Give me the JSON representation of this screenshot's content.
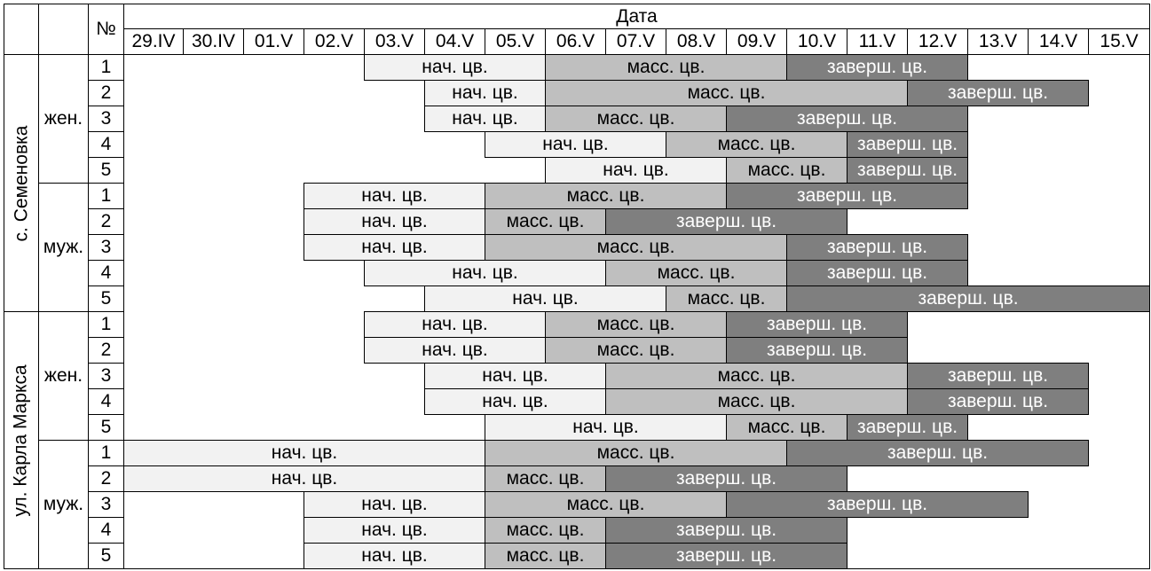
{
  "header": {
    "date_label": "Дата",
    "num_label": "№",
    "dates": [
      "29.IV",
      "30.IV",
      "01.V",
      "02.V",
      "03.V",
      "04.V",
      "05.V",
      "06.V",
      "07.V",
      "08.V",
      "09.V",
      "10.V",
      "11.V",
      "12.V",
      "13.V",
      "14.V",
      "15.V"
    ]
  },
  "colors": {
    "nach": "#f2f2f2",
    "mass": "#bfbfbf",
    "zav": "#7f7f7f"
  },
  "phase_labels": {
    "nach": "нач. цв.",
    "mass": "масс. цв.",
    "zav": "заверш. цв."
  },
  "sites": [
    {
      "name": "с. Семеновка",
      "groups": [
        {
          "sex": "жен.",
          "rows": [
            {
              "num": "1",
              "phases": [
                {
                  "type": "nach",
                  "start": 4,
                  "end": 6
                },
                {
                  "type": "mass",
                  "start": 7,
                  "end": 10
                },
                {
                  "type": "zav",
                  "start": 11,
                  "end": 13
                }
              ]
            },
            {
              "num": "2",
              "phases": [
                {
                  "type": "nach",
                  "start": 5,
                  "end": 6
                },
                {
                  "type": "mass",
                  "start": 7,
                  "end": 12
                },
                {
                  "type": "zav",
                  "start": 13,
                  "end": 15
                }
              ]
            },
            {
              "num": "3",
              "phases": [
                {
                  "type": "nach",
                  "start": 5,
                  "end": 6
                },
                {
                  "type": "mass",
                  "start": 7,
                  "end": 9
                },
                {
                  "type": "zav",
                  "start": 10,
                  "end": 13
                }
              ]
            },
            {
              "num": "4",
              "phases": [
                {
                  "type": "nach",
                  "start": 6,
                  "end": 8
                },
                {
                  "type": "mass",
                  "start": 9,
                  "end": 11
                },
                {
                  "type": "zav",
                  "start": 12,
                  "end": 13
                }
              ]
            },
            {
              "num": "5",
              "phases": [
                {
                  "type": "nach",
                  "start": 7,
                  "end": 9
                },
                {
                  "type": "mass",
                  "start": 10,
                  "end": 11
                },
                {
                  "type": "zav",
                  "start": 12,
                  "end": 13
                }
              ]
            }
          ]
        },
        {
          "sex": "муж.",
          "rows": [
            {
              "num": "1",
              "phases": [
                {
                  "type": "nach",
                  "start": 3,
                  "end": 5
                },
                {
                  "type": "mass",
                  "start": 6,
                  "end": 9
                },
                {
                  "type": "zav",
                  "start": 10,
                  "end": 13
                }
              ]
            },
            {
              "num": "2",
              "phases": [
                {
                  "type": "nach",
                  "start": 3,
                  "end": 5
                },
                {
                  "type": "mass",
                  "start": 6,
                  "end": 7
                },
                {
                  "type": "zav",
                  "start": 8,
                  "end": 11
                }
              ]
            },
            {
              "num": "3",
              "phases": [
                {
                  "type": "nach",
                  "start": 3,
                  "end": 5
                },
                {
                  "type": "mass",
                  "start": 6,
                  "end": 10
                },
                {
                  "type": "zav",
                  "start": 11,
                  "end": 13
                }
              ]
            },
            {
              "num": "4",
              "phases": [
                {
                  "type": "nach",
                  "start": 4,
                  "end": 7
                },
                {
                  "type": "mass",
                  "start": 8,
                  "end": 10
                },
                {
                  "type": "zav",
                  "start": 11,
                  "end": 13
                }
              ]
            },
            {
              "num": "5",
              "phases": [
                {
                  "type": "nach",
                  "start": 5,
                  "end": 8
                },
                {
                  "type": "mass",
                  "start": 9,
                  "end": 10
                },
                {
                  "type": "zav",
                  "start": 11,
                  "end": 16
                }
              ]
            }
          ]
        }
      ]
    },
    {
      "name": "ул. Карла Маркса",
      "groups": [
        {
          "sex": "жен.",
          "rows": [
            {
              "num": "1",
              "phases": [
                {
                  "type": "nach",
                  "start": 4,
                  "end": 6
                },
                {
                  "type": "mass",
                  "start": 7,
                  "end": 9
                },
                {
                  "type": "zav",
                  "start": 10,
                  "end": 12
                }
              ]
            },
            {
              "num": "2",
              "phases": [
                {
                  "type": "nach",
                  "start": 4,
                  "end": 6
                },
                {
                  "type": "mass",
                  "start": 7,
                  "end": 9
                },
                {
                  "type": "zav",
                  "start": 10,
                  "end": 12
                }
              ]
            },
            {
              "num": "3",
              "phases": [
                {
                  "type": "nach",
                  "start": 5,
                  "end": 7
                },
                {
                  "type": "mass",
                  "start": 8,
                  "end": 12
                },
                {
                  "type": "zav",
                  "start": 13,
                  "end": 15
                }
              ]
            },
            {
              "num": "4",
              "phases": [
                {
                  "type": "nach",
                  "start": 5,
                  "end": 7
                },
                {
                  "type": "mass",
                  "start": 8,
                  "end": 12
                },
                {
                  "type": "zav",
                  "start": 13,
                  "end": 15
                }
              ]
            },
            {
              "num": "5",
              "phases": [
                {
                  "type": "nach",
                  "start": 6,
                  "end": 9
                },
                {
                  "type": "mass",
                  "start": 10,
                  "end": 11
                },
                {
                  "type": "zav",
                  "start": 12,
                  "end": 13
                }
              ]
            }
          ]
        },
        {
          "sex": "муж.",
          "rows": [
            {
              "num": "1",
              "phases": [
                {
                  "type": "nach",
                  "start": 0,
                  "end": 5
                },
                {
                  "type": "mass",
                  "start": 6,
                  "end": 10
                },
                {
                  "type": "zav",
                  "start": 11,
                  "end": 15
                }
              ]
            },
            {
              "num": "2",
              "phases": [
                {
                  "type": "nach",
                  "start": 0,
                  "end": 5
                },
                {
                  "type": "mass",
                  "start": 6,
                  "end": 7
                },
                {
                  "type": "zav",
                  "start": 8,
                  "end": 11
                }
              ]
            },
            {
              "num": "3",
              "phases": [
                {
                  "type": "nach",
                  "start": 3,
                  "end": 5
                },
                {
                  "type": "mass",
                  "start": 6,
                  "end": 9
                },
                {
                  "type": "zav",
                  "start": 10,
                  "end": 14
                }
              ]
            },
            {
              "num": "4",
              "phases": [
                {
                  "type": "nach",
                  "start": 3,
                  "end": 5
                },
                {
                  "type": "mass",
                  "start": 6,
                  "end": 7
                },
                {
                  "type": "zav",
                  "start": 8,
                  "end": 11
                }
              ]
            },
            {
              "num": "5",
              "phases": [
                {
                  "type": "nach",
                  "start": 3,
                  "end": 5
                },
                {
                  "type": "mass",
                  "start": 6,
                  "end": 7
                },
                {
                  "type": "zav",
                  "start": 8,
                  "end": 11
                }
              ]
            }
          ]
        }
      ]
    }
  ]
}
